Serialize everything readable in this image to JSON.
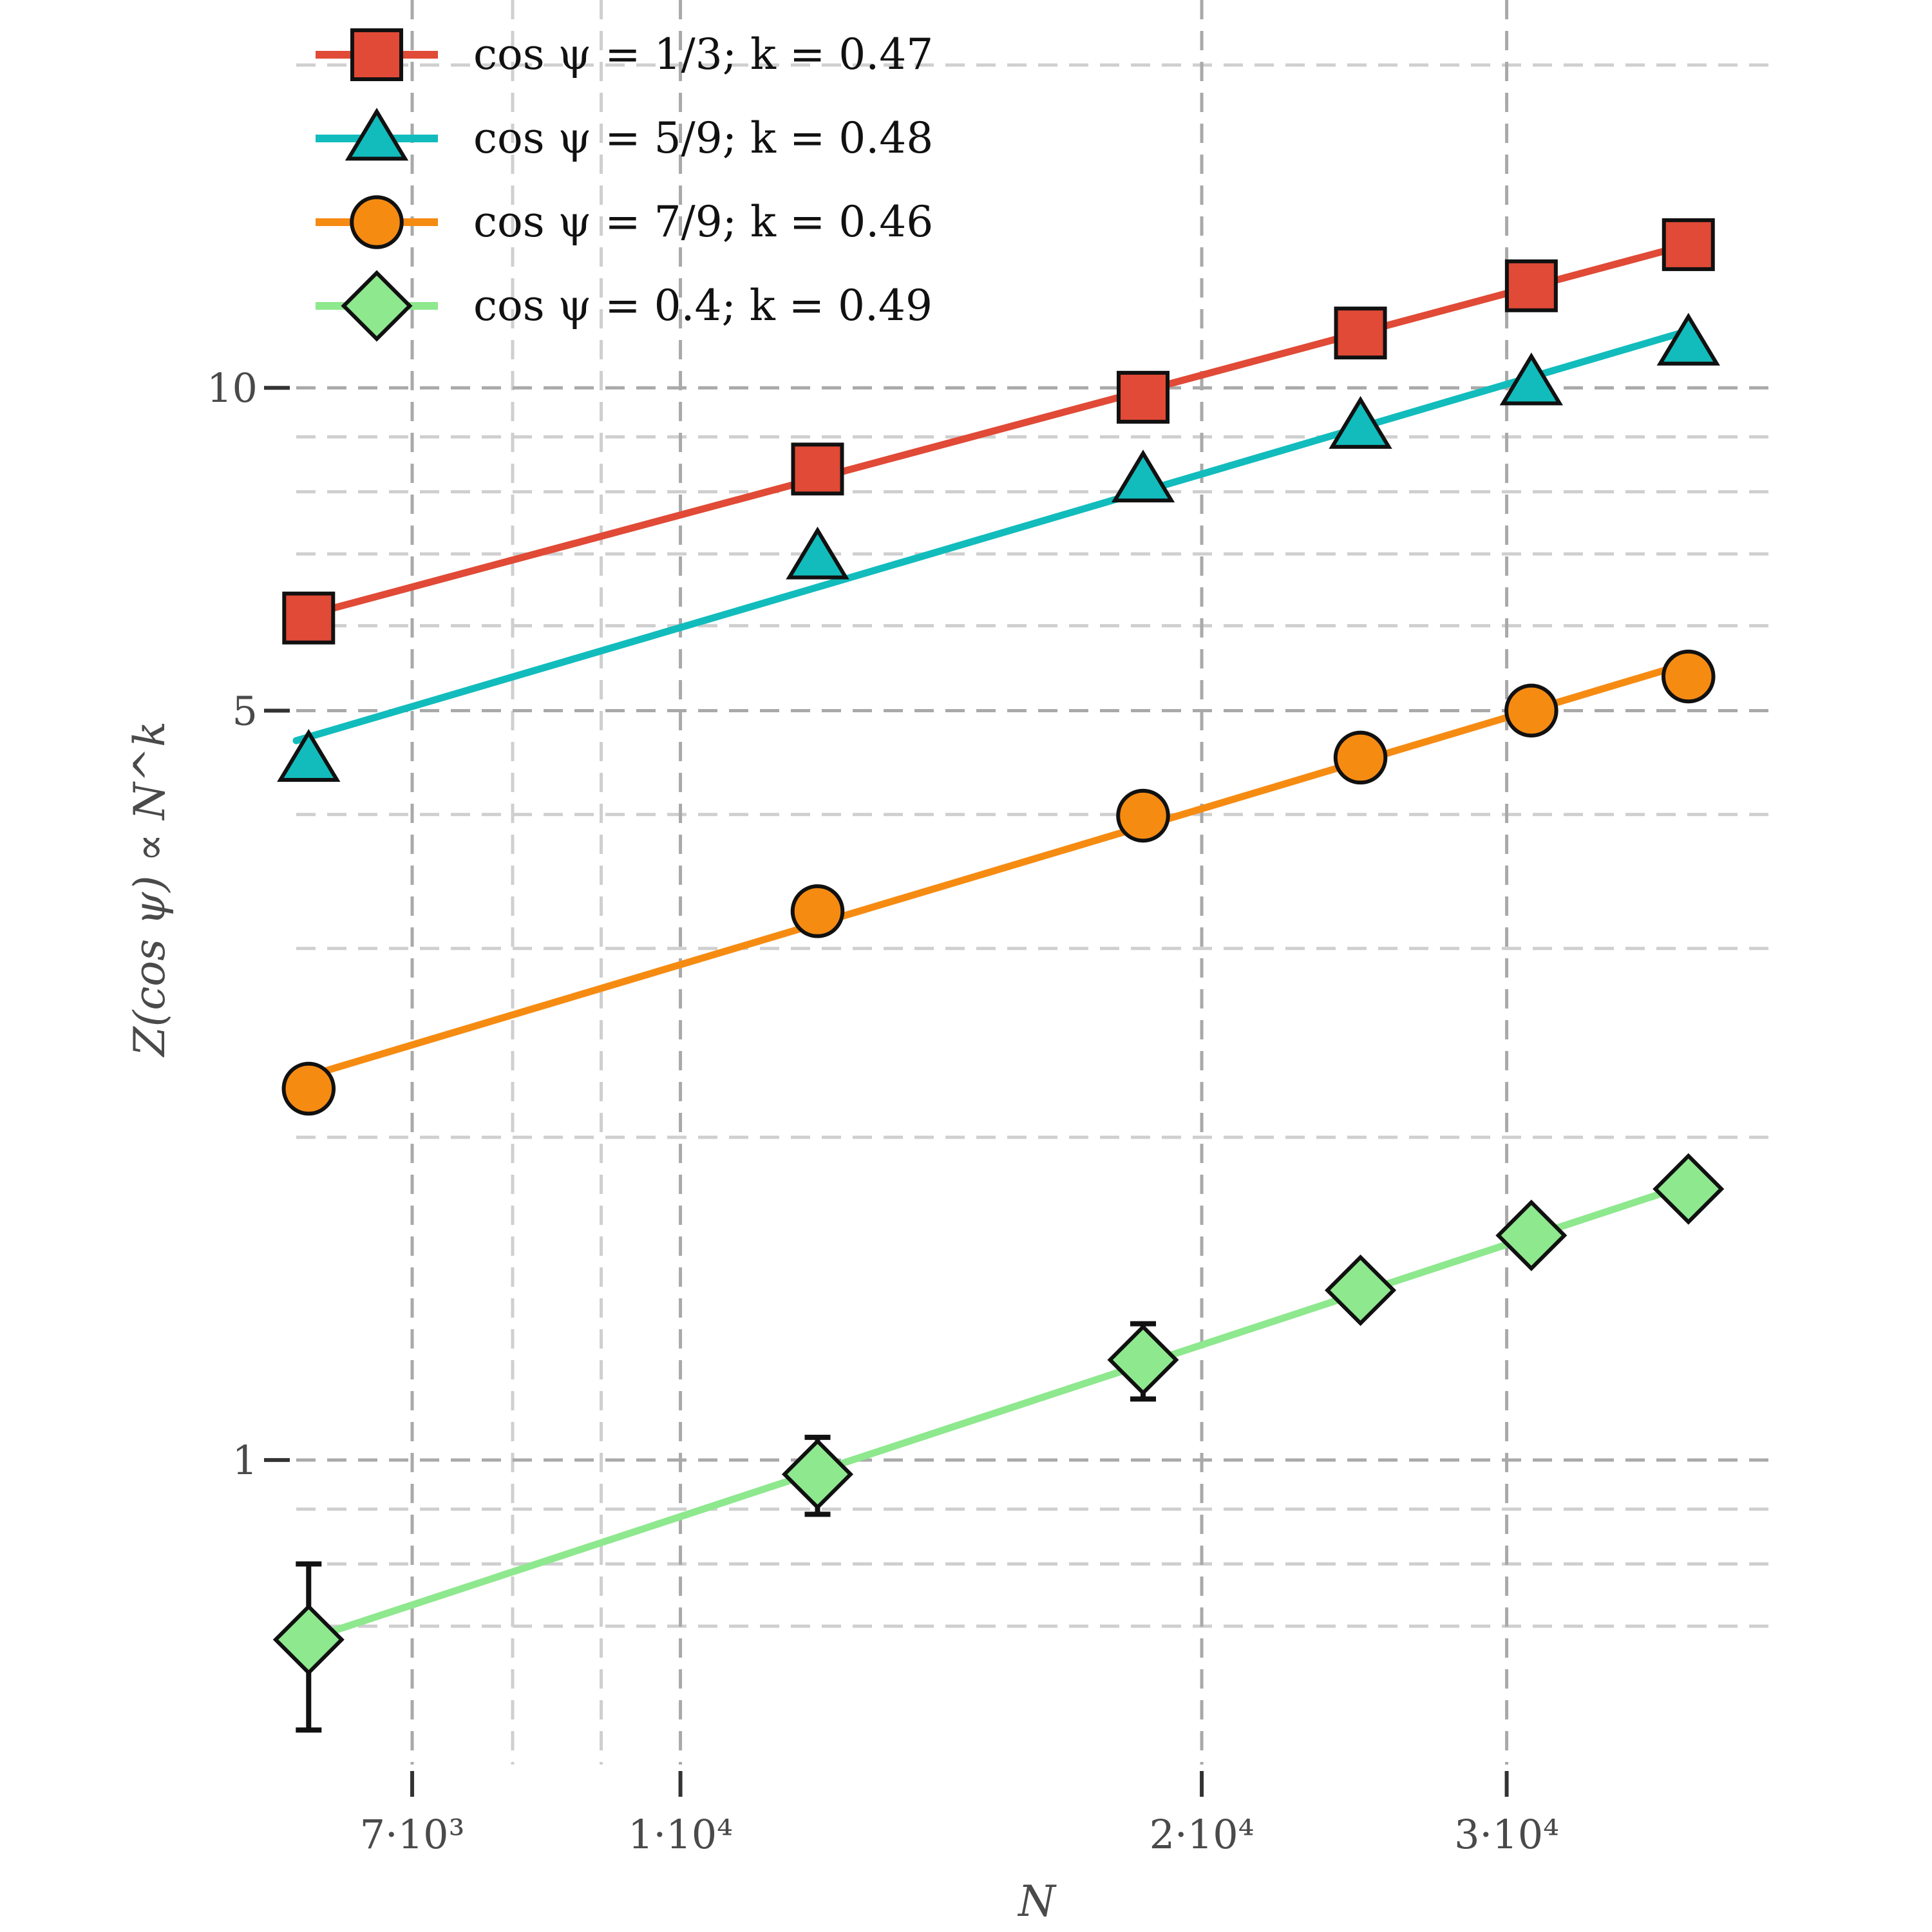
{
  "chart_data": {
    "type": "line",
    "scale": {
      "x": "log",
      "y": "log"
    },
    "xlabel": "N",
    "ylabel": "Z(cos ψ)  ∝  N^k",
    "xlim": [
      6000,
      43000
    ],
    "ylim": [
      0.52,
      23
    ],
    "x_ticks": [
      {
        "value": 7000,
        "label": "7·10³"
      },
      {
        "value": 10000,
        "label": "1·10⁴"
      },
      {
        "value": 20000,
        "label": "2·10⁴"
      },
      {
        "value": 30000,
        "label": "3·10⁴"
      }
    ],
    "x_minor_grid": [
      8000,
      9000
    ],
    "y_ticks": [
      {
        "value": 1,
        "label": "1"
      },
      {
        "value": 5,
        "label": "5"
      },
      {
        "value": 10,
        "label": "10"
      }
    ],
    "y_minor_grid": [
      0.7,
      0.8,
      0.9,
      2,
      3,
      4,
      6,
      7,
      8,
      9,
      20
    ],
    "grid": true,
    "legend_position": "top-left",
    "series": [
      {
        "name": "cos ψ = 1/3; k = 0.47",
        "color": "#e04a36",
        "marker": "square",
        "x": [
          6100,
          12000,
          18500,
          24700,
          31000,
          38200
        ],
        "y": [
          6.1,
          8.4,
          9.8,
          11.25,
          12.45,
          13.6
        ]
      },
      {
        "name": "cos ψ = 5/9; k = 0.48",
        "color": "#12bcbc",
        "marker": "triangle",
        "x": [
          6100,
          12000,
          18500,
          24700,
          31000,
          38200
        ],
        "y": [
          4.5,
          6.95,
          8.2,
          9.2,
          10.1,
          11.0
        ]
      },
      {
        "name": "cos ψ = 7/9; k = 0.46",
        "color": "#f68b12",
        "marker": "circle",
        "x": [
          6100,
          12000,
          18500,
          24700,
          31000,
          38200
        ],
        "y": [
          2.22,
          3.25,
          3.99,
          4.52,
          5.0,
          5.38
        ]
      },
      {
        "name": "cos ψ = 0.4; k = 0.49",
        "color": "#8ee88e",
        "marker": "diamond",
        "x": [
          6100,
          12000,
          18500,
          24700,
          31000,
          38200
        ],
        "y": [
          0.68,
          0.97,
          1.24,
          1.44,
          1.62,
          1.79
        ],
        "error": [
          0.12,
          0.08,
          0.1,
          0.05,
          0.05,
          0.02
        ]
      }
    ]
  }
}
